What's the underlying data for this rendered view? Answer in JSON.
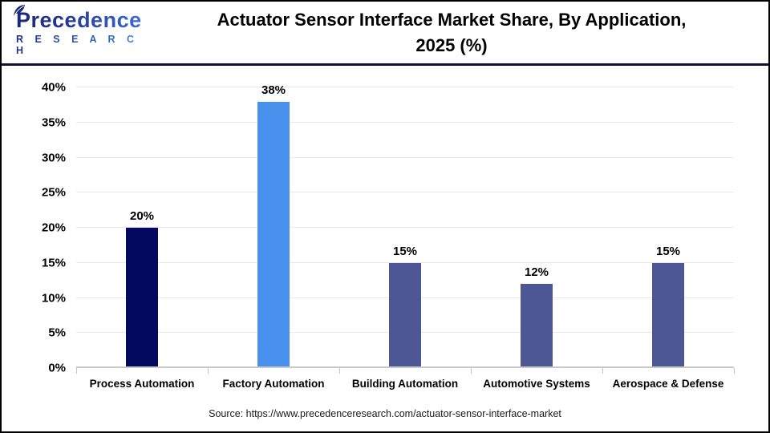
{
  "header": {
    "logo_line1": "Precedence",
    "logo_line2": "R E S E A R C H",
    "title_line1": "Actuator Sensor Interface Market Share, By Application,",
    "title_line2": "2025 (%)"
  },
  "chart_data": {
    "type": "bar",
    "title": "Actuator Sensor Interface Market Share, By Application, 2025 (%)",
    "categories": [
      "Process Automation",
      "Factory Automation",
      "Building Automation",
      "Automotive Systems",
      "Aerospace & Defense"
    ],
    "values": [
      20,
      38,
      15,
      12,
      15
    ],
    "value_labels": [
      "20%",
      "38%",
      "15%",
      "12%",
      "15%"
    ],
    "bar_colors": [
      "#02095e",
      "#4791ec",
      "#4d5795",
      "#4d5795",
      "#4d5795"
    ],
    "xlabel": "",
    "ylabel": "",
    "ylim": [
      0,
      40
    ],
    "yticks": [
      0,
      5,
      10,
      15,
      20,
      25,
      30,
      35,
      40
    ],
    "ytick_labels": [
      "0%",
      "5%",
      "10%",
      "15%",
      "20%",
      "25%",
      "30%",
      "35%",
      "40%"
    ],
    "grid": true,
    "legend_position": "none"
  },
  "footer": {
    "source": "Source: https://www.precedenceresearch.com/actuator-sensor-interface-market"
  },
  "colors": {
    "navy_bar": "#02095e",
    "blue_bar": "#4791ec",
    "slate_bar": "#4d5795",
    "header_rule": "#0e1238",
    "gridline": "#e9e9e9",
    "axis_line": "#c9c9c9",
    "frame_border": "#000000"
  }
}
